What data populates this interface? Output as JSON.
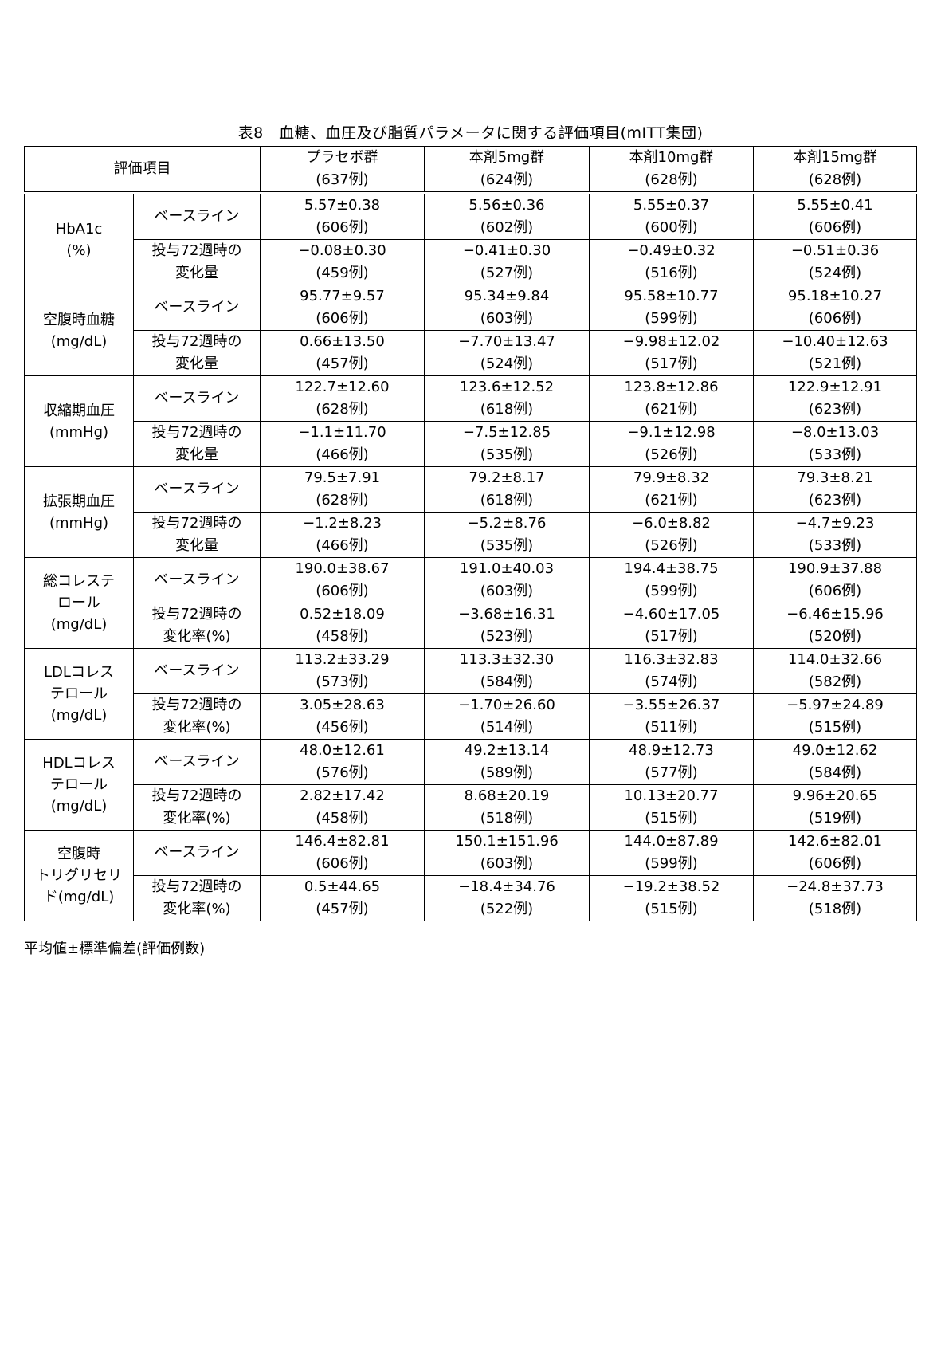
{
  "title": "表8　血糖、血圧及び脂質パラメータに関する評価項目(mITT集団)",
  "header": {
    "item_label": "評価項目",
    "groups": [
      {
        "name": "プラセボ群",
        "n": "(637例)"
      },
      {
        "name": "本剤5mg群",
        "n": "(624例)"
      },
      {
        "name": "本剤10mg群",
        "n": "(628例)"
      },
      {
        "name": "本剤15mg群",
        "n": "(628例)"
      }
    ]
  },
  "rows": [
    {
      "category": [
        "HbA1c",
        "(%)"
      ],
      "sub": [
        {
          "label": [
            "ベースライン"
          ],
          "cells": [
            [
              "5.57±0.38",
              "(606例)"
            ],
            [
              "5.56±0.36",
              "(602例)"
            ],
            [
              "5.55±0.37",
              "(600例)"
            ],
            [
              "5.55±0.41",
              "(606例)"
            ]
          ]
        },
        {
          "label": [
            "投与72週時の",
            "変化量"
          ],
          "cells": [
            [
              "−0.08±0.30",
              "(459例)"
            ],
            [
              "−0.41±0.30",
              "(527例)"
            ],
            [
              "−0.49±0.32",
              "(516例)"
            ],
            [
              "−0.51±0.36",
              "(524例)"
            ]
          ]
        }
      ]
    },
    {
      "category": [
        "空腹時血糖",
        "(mg/dL)"
      ],
      "sub": [
        {
          "label": [
            "ベースライン"
          ],
          "cells": [
            [
              "95.77±9.57",
              "(606例)"
            ],
            [
              "95.34±9.84",
              "(603例)"
            ],
            [
              "95.58±10.77",
              "(599例)"
            ],
            [
              "95.18±10.27",
              "(606例)"
            ]
          ]
        },
        {
          "label": [
            "投与72週時の",
            "変化量"
          ],
          "cells": [
            [
              "0.66±13.50",
              "(457例)"
            ],
            [
              "−7.70±13.47",
              "(524例)"
            ],
            [
              "−9.98±12.02",
              "(517例)"
            ],
            [
              "−10.40±12.63",
              "(521例)"
            ]
          ]
        }
      ]
    },
    {
      "category": [
        "収縮期血圧",
        "(mmHg)"
      ],
      "sub": [
        {
          "label": [
            "ベースライン"
          ],
          "cells": [
            [
              "122.7±12.60",
              "(628例)"
            ],
            [
              "123.6±12.52",
              "(618例)"
            ],
            [
              "123.8±12.86",
              "(621例)"
            ],
            [
              "122.9±12.91",
              "(623例)"
            ]
          ]
        },
        {
          "label": [
            "投与72週時の",
            "変化量"
          ],
          "cells": [
            [
              "−1.1±11.70",
              "(466例)"
            ],
            [
              "−7.5±12.85",
              "(535例)"
            ],
            [
              "−9.1±12.98",
              "(526例)"
            ],
            [
              "−8.0±13.03",
              "(533例)"
            ]
          ]
        }
      ]
    },
    {
      "category": [
        "拡張期血圧",
        "(mmHg)"
      ],
      "sub": [
        {
          "label": [
            "ベースライン"
          ],
          "cells": [
            [
              "79.5±7.91",
              "(628例)"
            ],
            [
              "79.2±8.17",
              "(618例)"
            ],
            [
              "79.9±8.32",
              "(621例)"
            ],
            [
              "79.3±8.21",
              "(623例)"
            ]
          ]
        },
        {
          "label": [
            "投与72週時の",
            "変化量"
          ],
          "cells": [
            [
              "−1.2±8.23",
              "(466例)"
            ],
            [
              "−5.2±8.76",
              "(535例)"
            ],
            [
              "−6.0±8.82",
              "(526例)"
            ],
            [
              "−4.7±9.23",
              "(533例)"
            ]
          ]
        }
      ]
    },
    {
      "category": [
        "総コレステ",
        "ロール",
        "(mg/dL)"
      ],
      "sub": [
        {
          "label": [
            "ベースライン"
          ],
          "cells": [
            [
              "190.0±38.67",
              "(606例)"
            ],
            [
              "191.0±40.03",
              "(603例)"
            ],
            [
              "194.4±38.75",
              "(599例)"
            ],
            [
              "190.9±37.88",
              "(606例)"
            ]
          ]
        },
        {
          "label": [
            "投与72週時の",
            "変化率(%)"
          ],
          "cells": [
            [
              "0.52±18.09",
              "(458例)"
            ],
            [
              "−3.68±16.31",
              "(523例)"
            ],
            [
              "−4.60±17.05",
              "(517例)"
            ],
            [
              "−6.46±15.96",
              "(520例)"
            ]
          ]
        }
      ]
    },
    {
      "category": [
        "LDLコレス",
        "テロール",
        "(mg/dL)"
      ],
      "sub": [
        {
          "label": [
            "ベースライン"
          ],
          "cells": [
            [
              "113.2±33.29",
              "(573例)"
            ],
            [
              "113.3±32.30",
              "(584例)"
            ],
            [
              "116.3±32.83",
              "(574例)"
            ],
            [
              "114.0±32.66",
              "(582例)"
            ]
          ]
        },
        {
          "label": [
            "投与72週時の",
            "変化率(%)"
          ],
          "cells": [
            [
              "3.05±28.63",
              "(456例)"
            ],
            [
              "−1.70±26.60",
              "(514例)"
            ],
            [
              "−3.55±26.37",
              "(511例)"
            ],
            [
              "−5.97±24.89",
              "(515例)"
            ]
          ]
        }
      ]
    },
    {
      "category": [
        "HDLコレス",
        "テロール",
        "(mg/dL)"
      ],
      "sub": [
        {
          "label": [
            "ベースライン"
          ],
          "cells": [
            [
              "48.0±12.61",
              "(576例)"
            ],
            [
              "49.2±13.14",
              "(589例)"
            ],
            [
              "48.9±12.73",
              "(577例)"
            ],
            [
              "49.0±12.62",
              "(584例)"
            ]
          ]
        },
        {
          "label": [
            "投与72週時の",
            "変化率(%)"
          ],
          "cells": [
            [
              "2.82±17.42",
              "(458例)"
            ],
            [
              "8.68±20.19",
              "(518例)"
            ],
            [
              "10.13±20.77",
              "(515例)"
            ],
            [
              "9.96±20.65",
              "(519例)"
            ]
          ]
        }
      ]
    },
    {
      "category": [
        "空腹時",
        "トリグリセリ",
        "ド(mg/dL)"
      ],
      "sub": [
        {
          "label": [
            "ベースライン"
          ],
          "cells": [
            [
              "146.4±82.81",
              "(606例)"
            ],
            [
              "150.1±151.96",
              "(603例)"
            ],
            [
              "144.0±87.89",
              "(599例)"
            ],
            [
              "142.6±82.01",
              "(606例)"
            ]
          ]
        },
        {
          "label": [
            "投与72週時の",
            "変化率(%)"
          ],
          "cells": [
            [
              "0.5±44.65",
              "(457例)"
            ],
            [
              "−18.4±34.76",
              "(522例)"
            ],
            [
              "−19.2±38.52",
              "(515例)"
            ],
            [
              "−24.8±37.73",
              "(518例)"
            ]
          ]
        }
      ]
    }
  ],
  "footnote": "平均値±標準偏差(評価例数)"
}
